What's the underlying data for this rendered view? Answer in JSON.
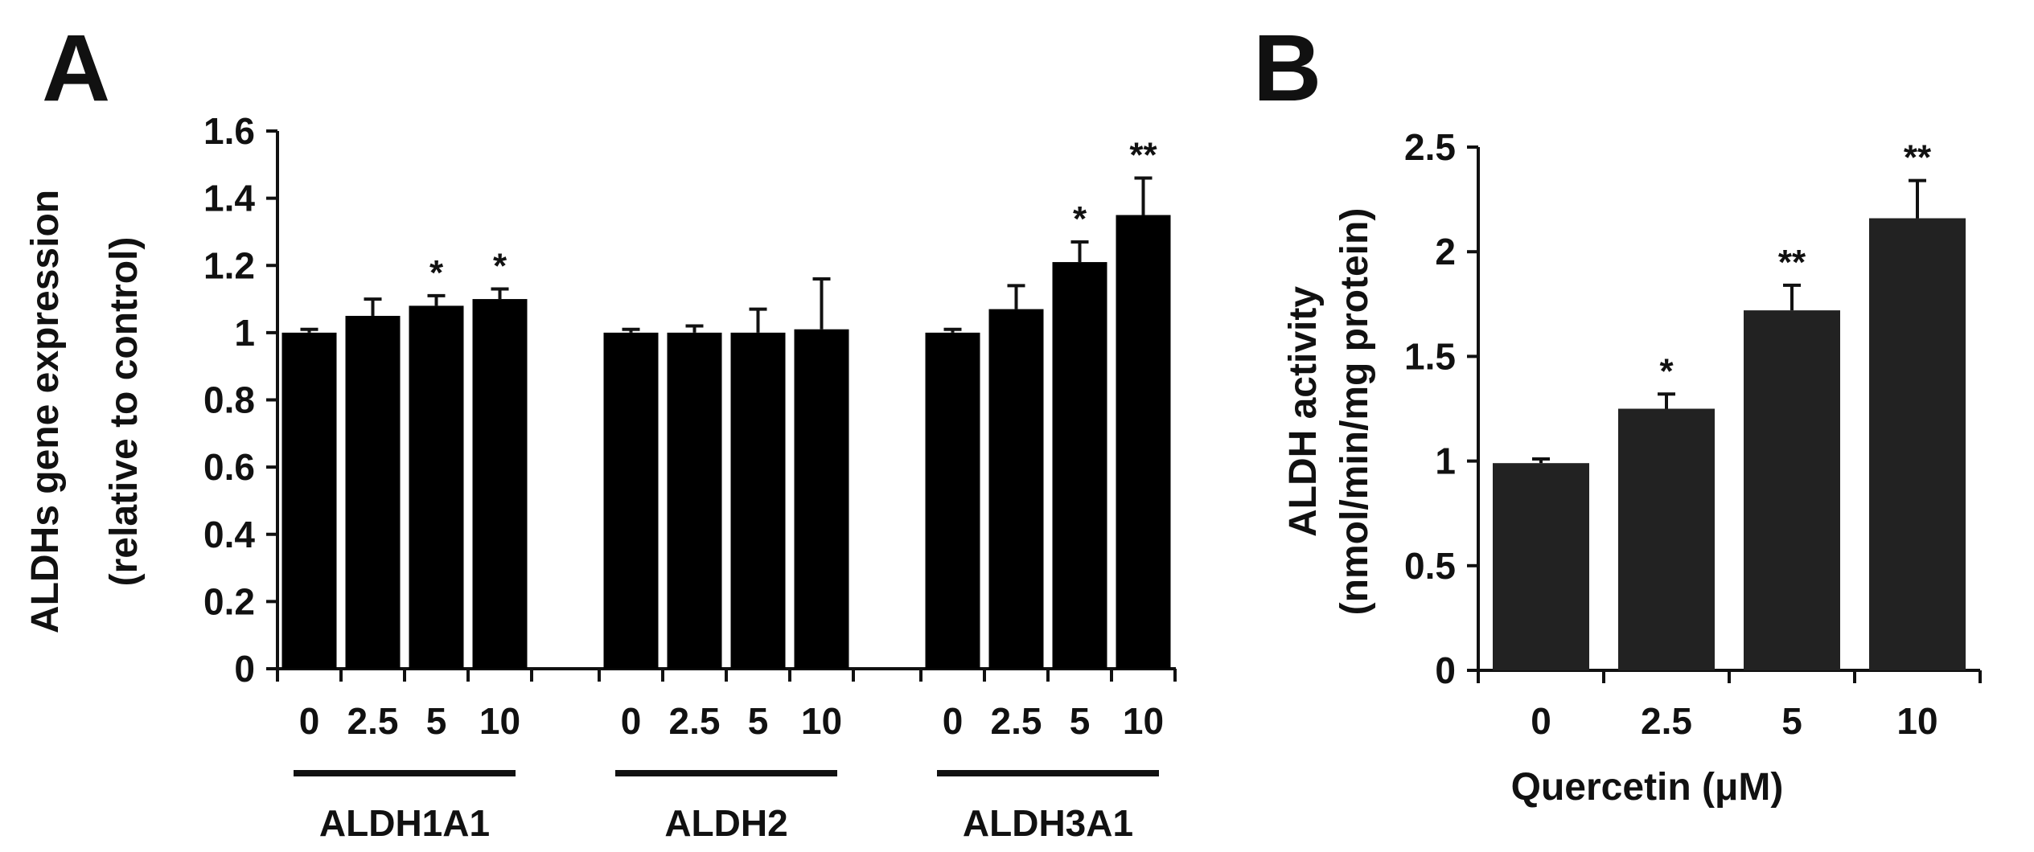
{
  "panels": [
    {
      "letter": "A"
    },
    {
      "letter": "B"
    }
  ],
  "chart_data": [
    {
      "type": "bar",
      "panel": "A",
      "ylabel_line1": "ALDHs gene expression",
      "ylabel_line2": "(relative to control)",
      "ylim": [
        0,
        1.6
      ],
      "yticks": [
        "0",
        "0.2",
        "0.4",
        "0.6",
        "0.8",
        "1",
        "1.2",
        "1.4",
        "1.6"
      ],
      "ytick_values": [
        0,
        0.2,
        0.4,
        0.6,
        0.8,
        1.0,
        1.2,
        1.4,
        1.6
      ],
      "bar_color": "#000000",
      "groups": [
        {
          "name": "ALDH1A1",
          "categories": [
            "0",
            "2.5",
            "5",
            "10"
          ],
          "values": [
            1.0,
            1.05,
            1.08,
            1.1
          ],
          "errors": [
            0.01,
            0.05,
            0.03,
            0.03
          ],
          "significance": [
            "",
            "",
            "*",
            "*"
          ]
        },
        {
          "name": "ALDH2",
          "categories": [
            "0",
            "2.5",
            "5",
            "10"
          ],
          "values": [
            1.0,
            1.0,
            1.0,
            1.01
          ],
          "errors": [
            0.01,
            0.02,
            0.07,
            0.15
          ],
          "significance": [
            "",
            "",
            "",
            ""
          ]
        },
        {
          "name": "ALDH3A1",
          "categories": [
            "0",
            "2.5",
            "5",
            "10"
          ],
          "values": [
            1.0,
            1.07,
            1.21,
            1.35
          ],
          "errors": [
            0.01,
            0.07,
            0.06,
            0.11
          ],
          "significance": [
            "",
            "",
            "*",
            "**"
          ]
        }
      ]
    },
    {
      "type": "bar",
      "panel": "B",
      "ylabel_line1": "ALDH activity",
      "ylabel_line2": "(nmol/min/mg protein)",
      "xlabel": "Quercetin (μM)",
      "ylim": [
        0,
        2.5
      ],
      "yticks": [
        "0",
        "0.5",
        "1",
        "1.5",
        "2",
        "2.5"
      ],
      "ytick_values": [
        0,
        0.5,
        1.0,
        1.5,
        2.0,
        2.5
      ],
      "bar_color": "#222222",
      "categories": [
        "0",
        "2.5",
        "5",
        "10"
      ],
      "values": [
        0.99,
        1.25,
        1.72,
        2.16
      ],
      "errors": [
        0.02,
        0.07,
        0.12,
        0.18
      ],
      "significance": [
        "",
        "*",
        "**",
        "**"
      ]
    }
  ]
}
